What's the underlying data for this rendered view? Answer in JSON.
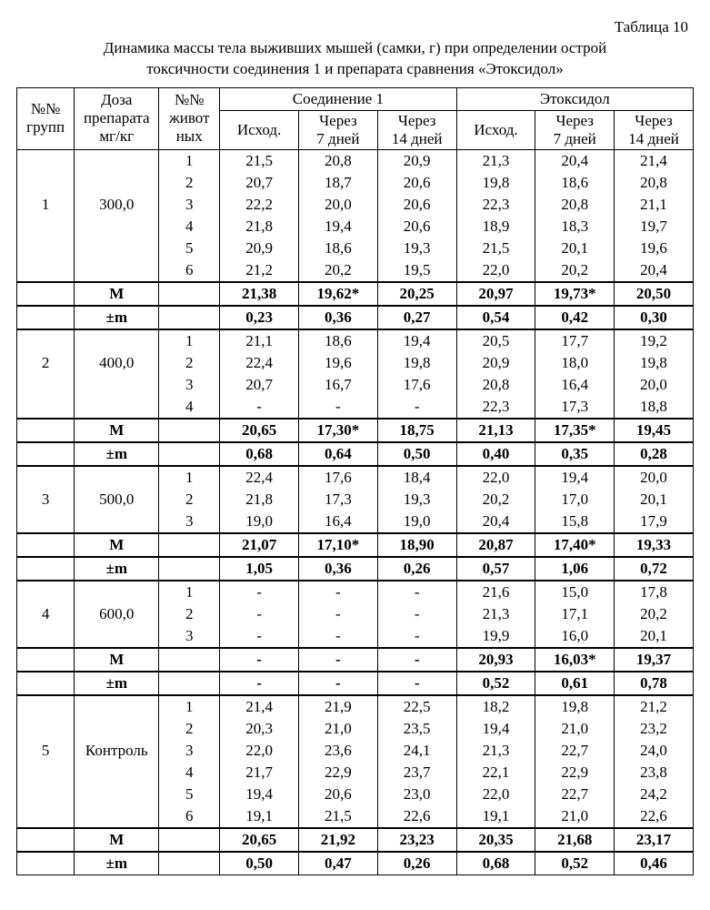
{
  "table_label": "Таблица 10",
  "title_line1": "Динамика массы тела выживших мышей (самки, г) при определении острой",
  "title_line2": "токсичности соединения 1 и препарата сравнения «Этоксидол»",
  "headers": {
    "groups": "№№\nгрупп",
    "dose": "Доза\nпрепарата\nмг/кг",
    "animals": "№№\nживот\nных",
    "compound": "Соединение 1",
    "etox": "Этоксидол",
    "baseline": "Исход.",
    "d7": "Через\n7 дней",
    "d14": "Через\n14 дней"
  },
  "stat_M": "М",
  "stat_pm": "±m",
  "groups": [
    {
      "num": "1",
      "dose": "300,0",
      "rows": [
        {
          "an": "1",
          "c": [
            "21,5",
            "20,8",
            "20,9"
          ],
          "e": [
            "21,3",
            "20,4",
            "21,4"
          ]
        },
        {
          "an": "2",
          "c": [
            "20,7",
            "18,7",
            "20,6"
          ],
          "e": [
            "19,8",
            "18,6",
            "20,8"
          ]
        },
        {
          "an": "3",
          "c": [
            "22,2",
            "20,0",
            "20,6"
          ],
          "e": [
            "22,3",
            "20,8",
            "21,1"
          ]
        },
        {
          "an": "4",
          "c": [
            "21,8",
            "19,4",
            "20,6"
          ],
          "e": [
            "18,9",
            "18,3",
            "19,7"
          ]
        },
        {
          "an": "5",
          "c": [
            "20,9",
            "18,6",
            "19,3"
          ],
          "e": [
            "21,5",
            "20,1",
            "19,6"
          ]
        },
        {
          "an": "6",
          "c": [
            "21,2",
            "20,2",
            "19,5"
          ],
          "e": [
            "22,0",
            "20,2",
            "20,4"
          ]
        }
      ],
      "M": {
        "c": [
          "21,38",
          "19,62*",
          "20,25"
        ],
        "e": [
          "20,97",
          "19,73*",
          "20,50"
        ]
      },
      "pm": {
        "c": [
          "0,23",
          "0,36",
          "0,27"
        ],
        "e": [
          "0,54",
          "0,42",
          "0,30"
        ]
      }
    },
    {
      "num": "2",
      "dose": "400,0",
      "rows": [
        {
          "an": "1",
          "c": [
            "21,1",
            "18,6",
            "19,4"
          ],
          "e": [
            "20,5",
            "17,7",
            "19,2"
          ]
        },
        {
          "an": "2",
          "c": [
            "22,4",
            "19,6",
            "19,8"
          ],
          "e": [
            "20,9",
            "18,0",
            "19,8"
          ]
        },
        {
          "an": "3",
          "c": [
            "20,7",
            "16,7",
            "17,6"
          ],
          "e": [
            "20,8",
            "16,4",
            "20,0"
          ]
        },
        {
          "an": "4",
          "c": [
            "-",
            "-",
            "-"
          ],
          "e": [
            "22,3",
            "17,3",
            "18,8"
          ]
        }
      ],
      "M": {
        "c": [
          "20,65",
          "17,30*",
          "18,75"
        ],
        "e": [
          "21,13",
          "17,35*",
          "19,45"
        ]
      },
      "pm": {
        "c": [
          "0,68",
          "0,64",
          "0,50"
        ],
        "e": [
          "0,40",
          "0,35",
          "0,28"
        ]
      }
    },
    {
      "num": "3",
      "dose": "500,0",
      "rows": [
        {
          "an": "1",
          "c": [
            "22,4",
            "17,6",
            "18,4"
          ],
          "e": [
            "22,0",
            "19,4",
            "20,0"
          ]
        },
        {
          "an": "2",
          "c": [
            "21,8",
            "17,3",
            "19,3"
          ],
          "e": [
            "20,2",
            "17,0",
            "20,1"
          ]
        },
        {
          "an": "3",
          "c": [
            "19,0",
            "16,4",
            "19,0"
          ],
          "e": [
            "20,4",
            "15,8",
            "17,9"
          ]
        }
      ],
      "M": {
        "c": [
          "21,07",
          "17,10*",
          "18,90"
        ],
        "e": [
          "20,87",
          "17,40*",
          "19,33"
        ]
      },
      "pm": {
        "c": [
          "1,05",
          "0,36",
          "0,26"
        ],
        "e": [
          "0,57",
          "1,06",
          "0,72"
        ]
      }
    },
    {
      "num": "4",
      "dose": "600,0",
      "rows": [
        {
          "an": "1",
          "c": [
            "-",
            "-",
            "-"
          ],
          "e": [
            "21,6",
            "15,0",
            "17,8"
          ]
        },
        {
          "an": "2",
          "c": [
            "-",
            "-",
            "-"
          ],
          "e": [
            "21,3",
            "17,1",
            "20,2"
          ]
        },
        {
          "an": "3",
          "c": [
            "-",
            "-",
            "-"
          ],
          "e": [
            "19,9",
            "16,0",
            "20,1"
          ]
        }
      ],
      "M": {
        "c": [
          "-",
          "-",
          "-"
        ],
        "e": [
          "20,93",
          "16,03*",
          "19,37"
        ]
      },
      "pm": {
        "c": [
          "-",
          "-",
          "-"
        ],
        "e": [
          "0,52",
          "0,61",
          "0,78"
        ]
      }
    },
    {
      "num": "5",
      "dose": "Контроль",
      "rows": [
        {
          "an": "1",
          "c": [
            "21,4",
            "21,9",
            "22,5"
          ],
          "e": [
            "18,2",
            "19,8",
            "21,2"
          ]
        },
        {
          "an": "2",
          "c": [
            "20,3",
            "21,0",
            "23,5"
          ],
          "e": [
            "19,4",
            "21,0",
            "23,2"
          ]
        },
        {
          "an": "3",
          "c": [
            "22,0",
            "23,6",
            "24,1"
          ],
          "e": [
            "21,3",
            "22,7",
            "24,0"
          ]
        },
        {
          "an": "4",
          "c": [
            "21,7",
            "22,9",
            "23,7"
          ],
          "e": [
            "22,1",
            "22,9",
            "23,8"
          ]
        },
        {
          "an": "5",
          "c": [
            "19,4",
            "20,6",
            "23,0"
          ],
          "e": [
            "22,0",
            "22,7",
            "24,2"
          ]
        },
        {
          "an": "6",
          "c": [
            "19,1",
            "21,5",
            "22,6"
          ],
          "e": [
            "19,1",
            "21,0",
            "22,6"
          ]
        }
      ],
      "M": {
        "c": [
          "20,65",
          "21,92",
          "23,23"
        ],
        "e": [
          "20,35",
          "21,68",
          "23,17"
        ]
      },
      "pm": {
        "c": [
          "0,50",
          "0,47",
          "0,26"
        ],
        "e": [
          "0,68",
          "0,52",
          "0,46"
        ]
      }
    }
  ]
}
